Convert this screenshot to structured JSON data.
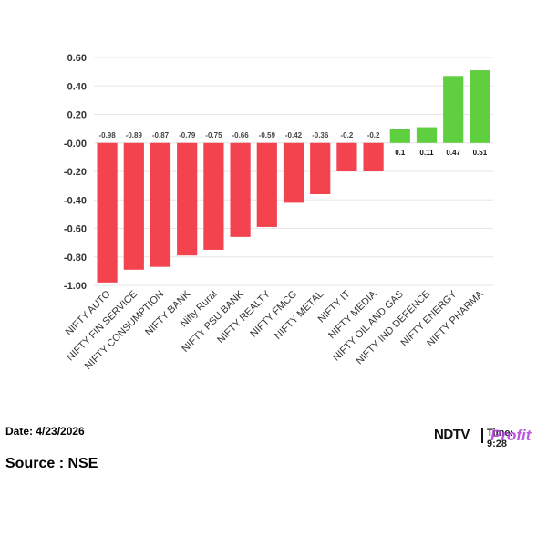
{
  "chart_data": {
    "type": "bar",
    "categories": [
      "NIFTY AUTO",
      "NIFTY FIN SERVICE",
      "NIFTY CONSUMPTION",
      "NIFTY BANK",
      "Nifty Rural",
      "NIFTY PSU BANK",
      "NIFTY REALTY",
      "NIFTY FMCG",
      "NIFTY METAL",
      "NIFTY IT",
      "NIFTY MEDIA",
      "NIFTY OIL AND GAS",
      "NIFTY IND DEFENCE",
      "NIFTY ENERGY",
      "NIFTY PHARMA"
    ],
    "values": [
      -0.98,
      -0.89,
      -0.87,
      -0.79,
      -0.75,
      -0.66,
      -0.59,
      -0.42,
      -0.36,
      -0.2,
      -0.2,
      0.1,
      0.11,
      0.47,
      0.51
    ],
    "data_labels": [
      "-0.98",
      "-0.89",
      "-0.87",
      "-0.79",
      "-0.75",
      "-0.66",
      "-0.59",
      "-0.42",
      "-0.36",
      "-0.2",
      "-0.2",
      "0.1",
      "0.11",
      "0.47",
      "0.51"
    ],
    "ylim": [
      -1.0,
      0.6
    ],
    "yticks": [
      "0.60",
      "0.40",
      "0.20",
      "-0.00",
      "-0.20",
      "-0.40",
      "-0.60",
      "-0.80",
      "-1.00"
    ],
    "ytick_values": [
      0.6,
      0.4,
      0.2,
      0,
      -0.2,
      -0.4,
      -0.6,
      -0.8,
      -1.0
    ],
    "grid": true,
    "colors": {
      "negative": "#f2434f",
      "positive": "#5fcf3f",
      "grid": "#e6e6e6"
    }
  },
  "footer": {
    "date": "Date: 4/23/2026",
    "source": "Source : NSE",
    "brand_ndtv": "NDTV",
    "brand_profit": "Profit",
    "brand_time": "Time: 9:28"
  }
}
